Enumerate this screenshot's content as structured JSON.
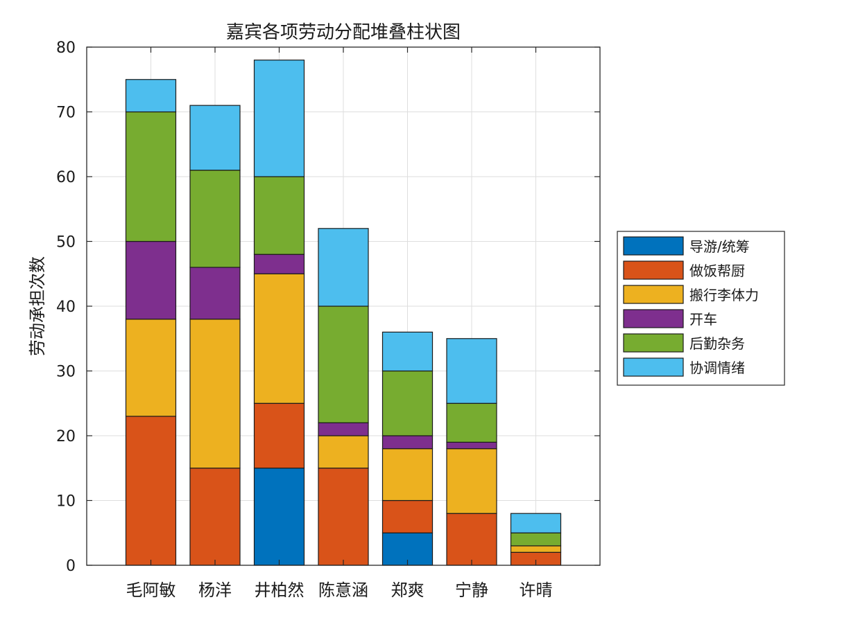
{
  "chart_data": {
    "type": "bar",
    "stacked": true,
    "title": "嘉宾各项劳动分配堆叠柱状图",
    "xlabel": "",
    "ylabel": "劳动承担次数",
    "ylim": [
      0,
      80
    ],
    "yticks": [
      0,
      10,
      20,
      30,
      40,
      50,
      60,
      70,
      80
    ],
    "grid": true,
    "legend_position": "right",
    "categories": [
      "毛阿敏",
      "杨洋",
      "井柏然",
      "陈意涵",
      "郑爽",
      "宁静",
      "许晴"
    ],
    "series": [
      {
        "name": "导游/统筹",
        "color": "#0072BD",
        "values": [
          0,
          0,
          15,
          0,
          5,
          0,
          0
        ]
      },
      {
        "name": "做饭帮厨",
        "color": "#D95319",
        "values": [
          23,
          15,
          10,
          15,
          5,
          8,
          2
        ]
      },
      {
        "name": "搬行李体力",
        "color": "#EDB120",
        "values": [
          15,
          23,
          20,
          5,
          8,
          10,
          1
        ]
      },
      {
        "name": "开车",
        "color": "#7E2F8E",
        "values": [
          12,
          8,
          3,
          2,
          2,
          1,
          0
        ]
      },
      {
        "name": "后勤杂务",
        "color": "#77AC30",
        "values": [
          20,
          15,
          12,
          18,
          10,
          6,
          2
        ]
      },
      {
        "name": "协调情绪",
        "color": "#4DBEEE",
        "values": [
          5,
          10,
          18,
          12,
          6,
          10,
          3
        ]
      }
    ]
  }
}
